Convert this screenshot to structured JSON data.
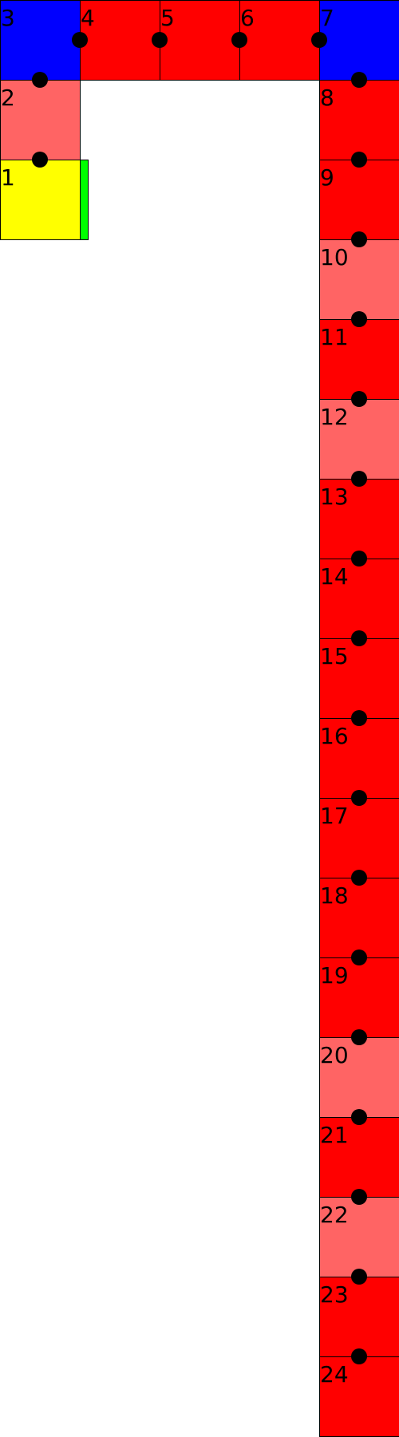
{
  "colors": {
    "corner": "#0000ff",
    "path": "#ff0000",
    "path_light": "#ff6464",
    "start": "#ffff00",
    "marker": "#00ff00",
    "dot": "#000000",
    "background": "#ffffff"
  },
  "cells": [
    {
      "label": "1",
      "kind": "start"
    },
    {
      "label": "2",
      "kind": "path_light"
    },
    {
      "label": "3",
      "kind": "corner"
    },
    {
      "label": "4",
      "kind": "path"
    },
    {
      "label": "5",
      "kind": "path"
    },
    {
      "label": "6",
      "kind": "path"
    },
    {
      "label": "7",
      "kind": "corner"
    },
    {
      "label": "8",
      "kind": "path"
    },
    {
      "label": "9",
      "kind": "path"
    },
    {
      "label": "10",
      "kind": "path_light"
    },
    {
      "label": "11",
      "kind": "path"
    },
    {
      "label": "12",
      "kind": "path_light"
    },
    {
      "label": "13",
      "kind": "path"
    },
    {
      "label": "14",
      "kind": "path"
    },
    {
      "label": "15",
      "kind": "path"
    },
    {
      "label": "16",
      "kind": "path"
    },
    {
      "label": "17",
      "kind": "path"
    },
    {
      "label": "18",
      "kind": "path"
    },
    {
      "label": "19",
      "kind": "path"
    },
    {
      "label": "20",
      "kind": "path_light"
    },
    {
      "label": "21",
      "kind": "path"
    },
    {
      "label": "22",
      "kind": "path_light"
    },
    {
      "label": "23",
      "kind": "path"
    },
    {
      "label": "24",
      "kind": "path"
    }
  ]
}
